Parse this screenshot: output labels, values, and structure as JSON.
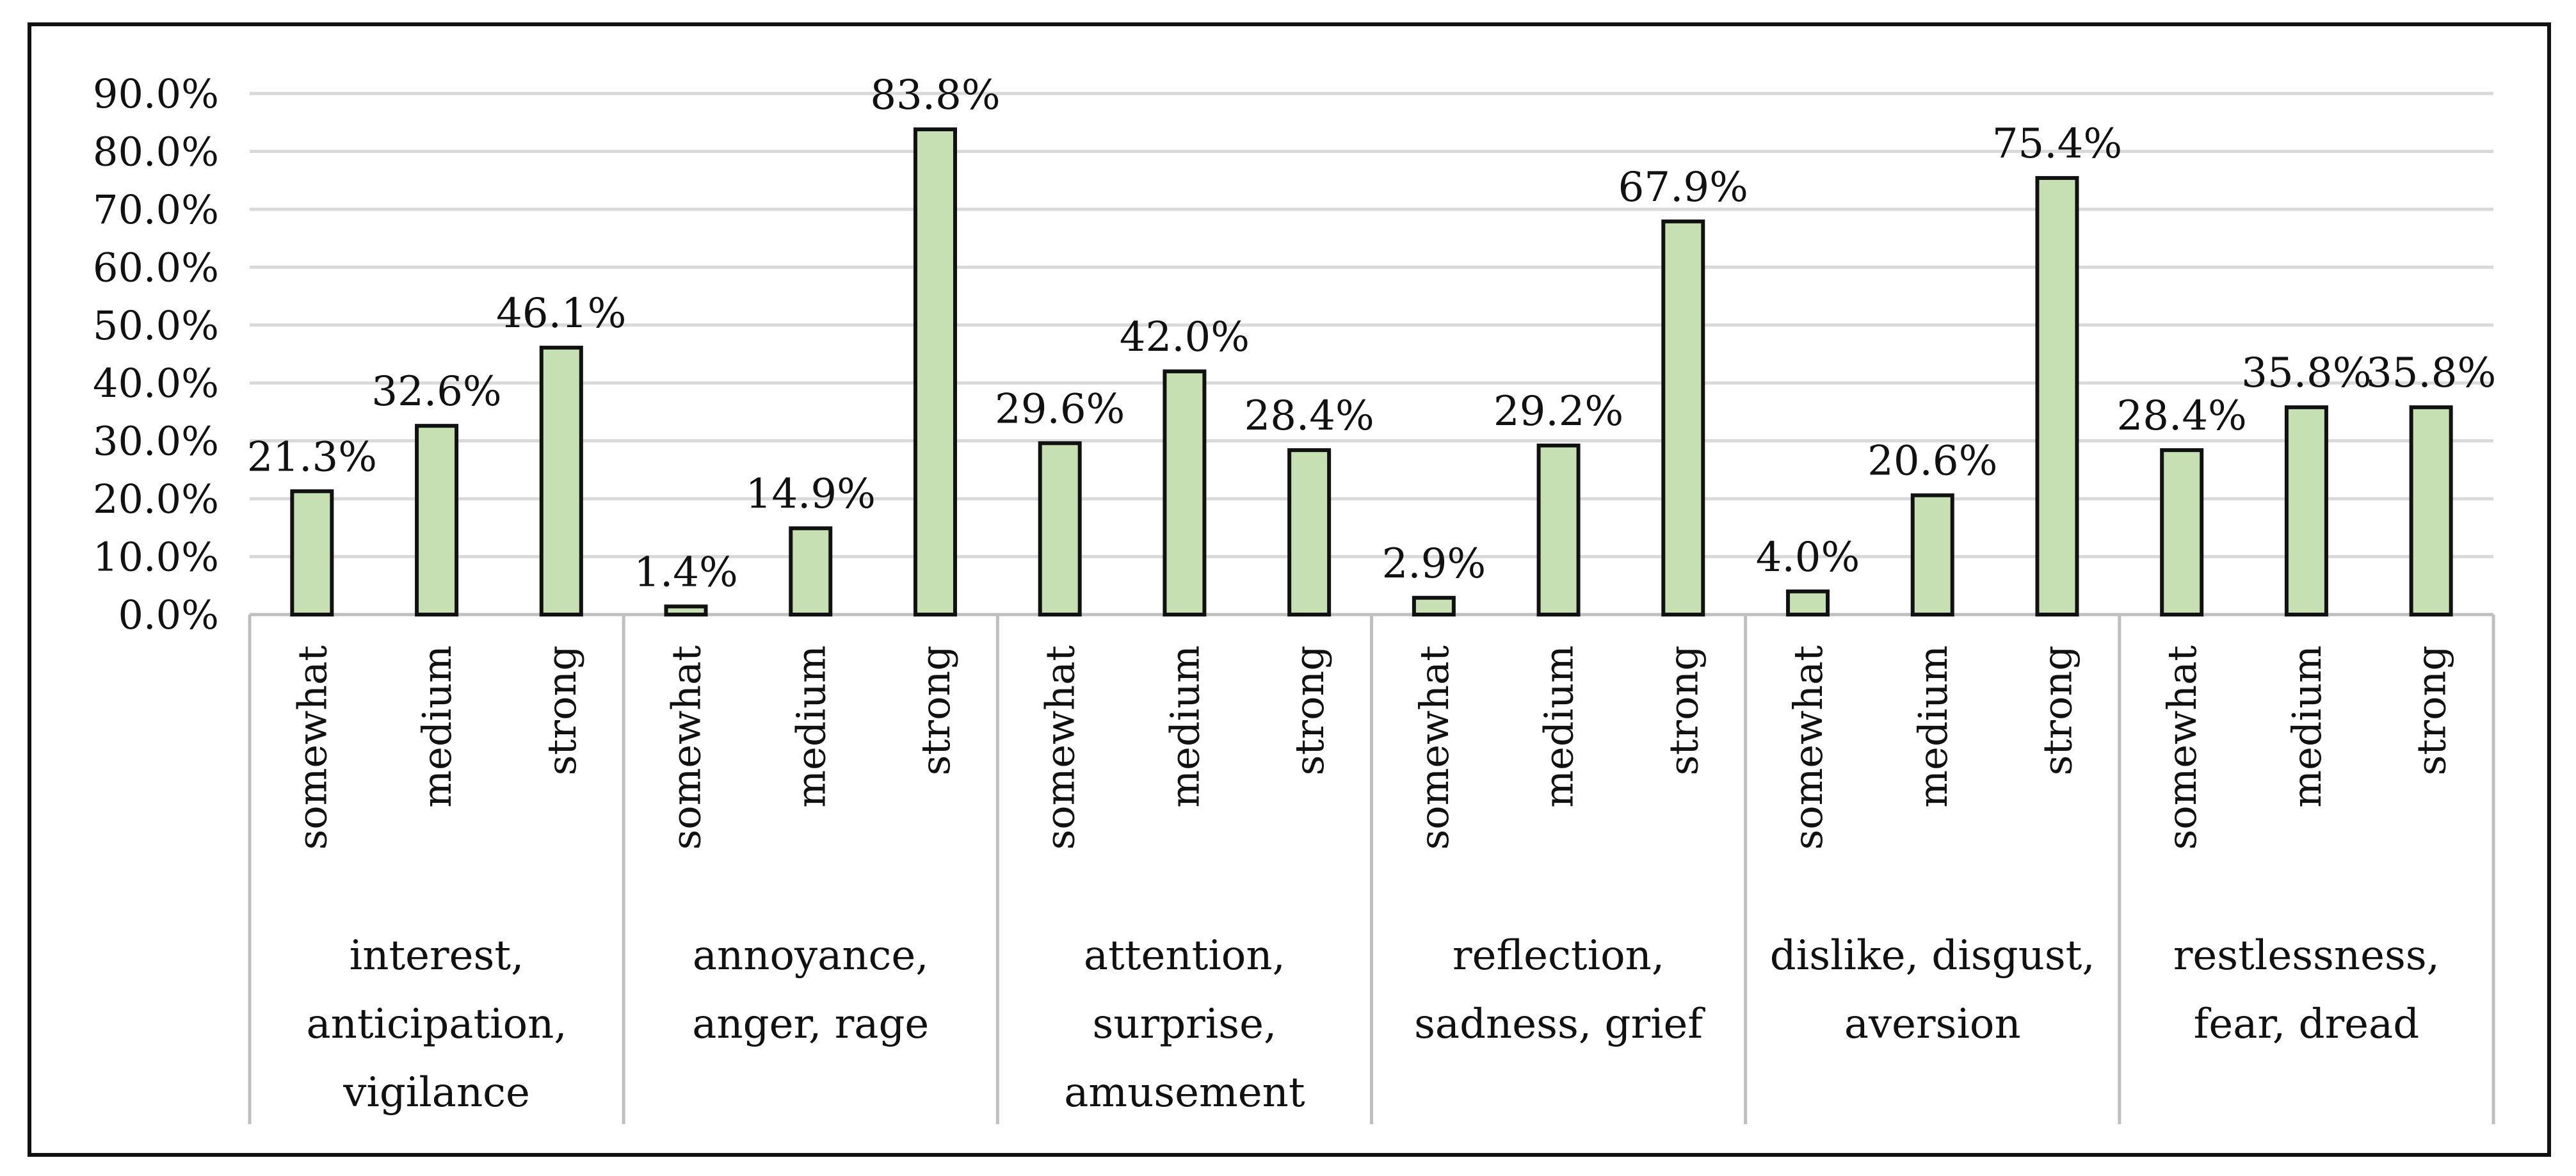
{
  "chart_data": {
    "type": "bar",
    "title": "",
    "xlabel": "",
    "ylabel": "",
    "ylim": [
      0,
      90
    ],
    "y_tick_labels": [
      "0.0%",
      "10.0%",
      "20.0%",
      "30.0%",
      "40.0%",
      "50.0%",
      "60.0%",
      "70.0%",
      "80.0%",
      "90.0%"
    ],
    "grid": true,
    "legend": "none",
    "groups": [
      {
        "name": "interest, anticipation, vigilance",
        "name_lines": [
          "interest,",
          "anticipation,",
          "vigilance"
        ],
        "categories": [
          "somewhat",
          "medium",
          "strong"
        ],
        "values": [
          21.3,
          32.6,
          46.1
        ],
        "labels": [
          "21.3%",
          "32.6%",
          "46.1%"
        ]
      },
      {
        "name": "annoyance, anger, rage",
        "name_lines": [
          "annoyance,",
          "anger, rage"
        ],
        "categories": [
          "somewhat",
          "medium",
          "strong"
        ],
        "values": [
          1.4,
          14.9,
          83.8
        ],
        "labels": [
          "1.4%",
          "14.9%",
          "83.8%"
        ]
      },
      {
        "name": "attention, surprise, amusement",
        "name_lines": [
          "attention,",
          "surprise,",
          "amusement"
        ],
        "categories": [
          "somewhat",
          "medium",
          "strong"
        ],
        "values": [
          29.6,
          42.0,
          28.4
        ],
        "labels": [
          "29.6%",
          "42.0%",
          "28.4%"
        ]
      },
      {
        "name": "reflection, sadness, grief",
        "name_lines": [
          "reflection,",
          "sadness, grief"
        ],
        "categories": [
          "somewhat",
          "medium",
          "strong"
        ],
        "values": [
          2.9,
          29.2,
          67.9
        ],
        "labels": [
          "2.9%",
          "29.2%",
          "67.9%"
        ]
      },
      {
        "name": "dislike, disgust, aversion",
        "name_lines": [
          "dislike, disgust,",
          "aversion"
        ],
        "categories": [
          "somewhat",
          "medium",
          "strong"
        ],
        "values": [
          4.0,
          20.6,
          75.4
        ],
        "labels": [
          "4.0%",
          "20.6%",
          "75.4%"
        ]
      },
      {
        "name": "restlessness, fear, dread",
        "name_lines": [
          "restlessness,",
          "fear, dread"
        ],
        "categories": [
          "somewhat",
          "medium",
          "strong"
        ],
        "values": [
          28.4,
          35.8,
          35.8
        ],
        "labels": [
          "28.4%",
          "35.8%",
          "35.8%"
        ]
      }
    ]
  },
  "colors": {
    "bar_fill": "#c6e0b4",
    "bar_stroke": "#111111",
    "grid": "#d9d9d9",
    "axis": "#bfbfbf",
    "frame": "#111111"
  }
}
